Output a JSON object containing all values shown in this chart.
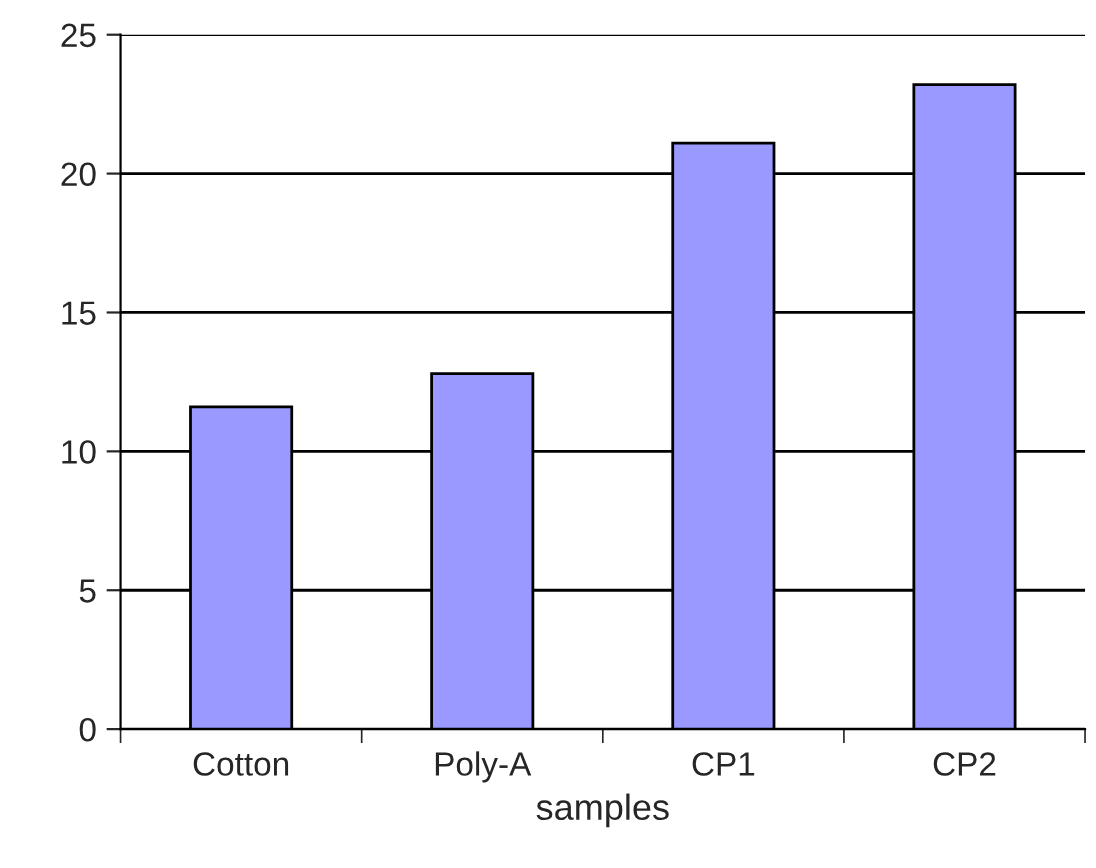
{
  "chart_data": {
    "type": "bar",
    "xlabel": "samples",
    "categories": [
      "Cotton",
      "Poly-A",
      "CP1",
      "CP2"
    ],
    "values": [
      11.6,
      12.8,
      21.1,
      23.2
    ],
    "color": "#9999ff",
    "ylim": [
      0,
      25
    ],
    "yticks": [
      0,
      5,
      10,
      15,
      20,
      25
    ],
    "grid": "y",
    "legend": false
  }
}
